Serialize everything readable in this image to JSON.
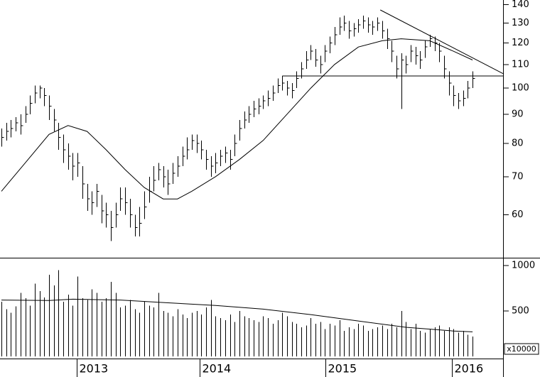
{
  "chart_data": {
    "type": "stock",
    "xlim": [
      -0.3,
      105.4
    ],
    "xticks": [
      {
        "value": 15.8,
        "label": "2013"
      },
      {
        "value": 41.65,
        "label": "2014"
      },
      {
        "value": 68.1,
        "label": "2015"
      },
      {
        "value": 94.65,
        "label": "2016"
      }
    ],
    "ylim": [
      50.5,
      142.6
    ],
    "log_y": true,
    "yticks": [
      60,
      70,
      80,
      90,
      100,
      110,
      120,
      130,
      140
    ],
    "color": "#000000",
    "high": [
      85,
      87,
      88,
      89,
      90,
      93,
      97,
      101,
      101,
      100,
      97,
      92,
      87,
      83,
      80,
      77,
      77,
      73,
      68,
      66,
      68,
      65,
      63,
      61,
      63,
      67,
      67,
      64,
      60,
      62,
      66,
      70,
      73,
      74,
      73,
      72,
      74,
      76,
      79,
      82,
      83,
      83,
      81,
      78,
      76,
      77,
      78,
      79,
      78,
      83,
      88,
      91,
      93,
      95,
      96,
      97,
      99,
      101,
      104,
      105,
      103,
      102,
      107,
      111,
      116,
      119,
      117,
      114,
      119,
      123,
      128,
      133,
      134,
      131,
      130,
      132,
      134,
      133,
      131,
      133,
      131,
      127,
      121,
      114,
      115,
      114,
      119,
      118,
      116,
      121,
      124,
      123,
      120,
      114,
      107,
      101,
      98,
      99,
      103,
      107
    ],
    "low": [
      79,
      81,
      82,
      84,
      83,
      87,
      90,
      94,
      96,
      93,
      88,
      84,
      78,
      74,
      72,
      69,
      70,
      64,
      61,
      60,
      62,
      58,
      57,
      54,
      57,
      61,
      60,
      57,
      55,
      55,
      59,
      63,
      66,
      69,
      67,
      65,
      68,
      70,
      73,
      75,
      78,
      77,
      75,
      72,
      70,
      71,
      73,
      74,
      72,
      76,
      81,
      85,
      87,
      89,
      90,
      92,
      93,
      95,
      98,
      99,
      97,
      96,
      100,
      104,
      108,
      112,
      109,
      106,
      111,
      115,
      119,
      124,
      126,
      122,
      123,
      125,
      127,
      125,
      124,
      126,
      122,
      117,
      111,
      104,
      92,
      106,
      111,
      110,
      108,
      113,
      118,
      116,
      111,
      104,
      97,
      93,
      92,
      93,
      96,
      100
    ],
    "close": [
      82,
      84,
      85,
      87,
      86,
      90,
      94,
      98,
      100,
      97,
      93,
      88,
      82,
      78,
      76,
      73,
      74,
      68,
      64,
      63,
      66,
      61,
      60,
      57,
      60,
      64,
      63,
      60,
      57,
      58,
      62,
      66,
      69,
      72,
      70,
      68,
      71,
      73,
      76,
      78,
      81,
      80,
      78,
      75,
      73,
      74,
      76,
      77,
      75,
      80,
      85,
      88,
      90,
      92,
      93,
      95,
      96,
      98,
      101,
      102,
      100,
      99,
      104,
      108,
      112,
      116,
      112,
      110,
      116,
      120,
      124,
      128,
      130,
      126,
      127,
      129,
      131,
      129,
      128,
      130,
      126,
      122,
      116,
      108,
      112,
      110,
      116,
      114,
      112,
      118,
      122,
      120,
      116,
      108,
      102,
      97,
      95,
      96,
      100,
      104
    ],
    "moving_average": {
      "x": [
        0,
        5,
        10,
        14,
        18,
        22,
        26,
        30,
        34,
        37,
        40,
        45,
        50,
        55,
        60,
        65,
        70,
        75,
        80,
        84,
        90,
        95,
        99
      ],
      "values": [
        66,
        74,
        83,
        86,
        84,
        78,
        72,
        67,
        64,
        64,
        66,
        70,
        75,
        81,
        90,
        100,
        110,
        118,
        121,
        122,
        121,
        116,
        112
      ]
    },
    "trend_lines": [
      {
        "x": [
          59,
          105.4
        ],
        "values": [
          105,
          105
        ]
      },
      {
        "x": [
          79.6,
          105.4
        ],
        "values": [
          137,
          106
        ]
      }
    ],
    "volume": {
      "unit": "x10000",
      "ylim": [
        0,
        1086
      ],
      "yticks": [
        500,
        1000
      ],
      "values": [
        600,
        520,
        480,
        550,
        700,
        640,
        560,
        800,
        720,
        650,
        900,
        780,
        950,
        600,
        680,
        560,
        880,
        640,
        620,
        740,
        700,
        600,
        640,
        820,
        700,
        540,
        560,
        620,
        520,
        480,
        600,
        560,
        540,
        700,
        500,
        480,
        440,
        520,
        460,
        420,
        480,
        500,
        460,
        540,
        620,
        440,
        420,
        400,
        460,
        380,
        500,
        440,
        420,
        400,
        380,
        440,
        420,
        360,
        400,
        480,
        440,
        380,
        360,
        320,
        340,
        420,
        360,
        380,
        300,
        360,
        340,
        400,
        280,
        320,
        300,
        360,
        340,
        280,
        300,
        320,
        340,
        300,
        360,
        320,
        500,
        380,
        300,
        360,
        280,
        260,
        300,
        320,
        340,
        280,
        320,
        300,
        260,
        280,
        240,
        220
      ],
      "moving_average": {
        "x": [
          0,
          10,
          15,
          25,
          35,
          45,
          55,
          65,
          75,
          85,
          95,
          99
        ],
        "values": [
          620,
          615,
          630,
          620,
          590,
          560,
          520,
          460,
          390,
          320,
          280,
          270
        ]
      }
    }
  }
}
